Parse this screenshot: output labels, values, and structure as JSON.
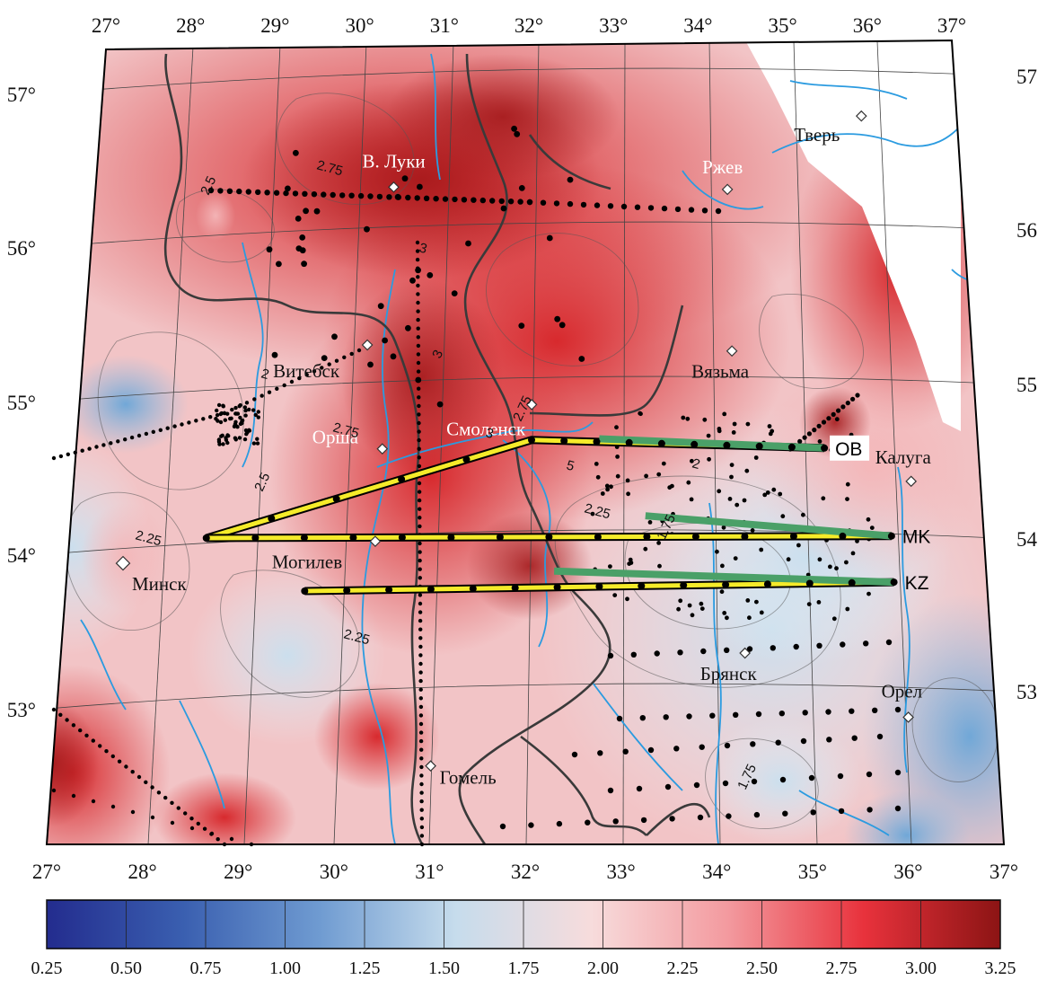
{
  "map": {
    "longitude_labels": [
      "27°",
      "28°",
      "29°",
      "30°",
      "31°",
      "32°",
      "33°",
      "34°",
      "35°",
      "36°",
      "37°"
    ],
    "latitude_labels": [
      "53°",
      "54°",
      "55°",
      "56°",
      "57°"
    ],
    "cities": [
      {
        "name": "В. Луки",
        "lon": 30.45,
        "lat": 56.2
      },
      {
        "name": "Ржев",
        "lon": 34.3,
        "lat": 56.26
      },
      {
        "name": "Тверь",
        "lon": 35.9,
        "lat": 56.86
      },
      {
        "name": "Витебск",
        "lon": 30.2,
        "lat": 55.18
      },
      {
        "name": "Вязьма",
        "lon": 34.3,
        "lat": 55.21
      },
      {
        "name": "Калуга",
        "lon": 36.25,
        "lat": 54.52
      },
      {
        "name": "Орша",
        "lon": 30.4,
        "lat": 54.5
      },
      {
        "name": "Смоленск",
        "lon": 32.05,
        "lat": 54.78
      },
      {
        "name": "Минск",
        "lon": 27.6,
        "lat": 53.9
      },
      {
        "name": "Могилев",
        "lon": 30.35,
        "lat": 53.9
      },
      {
        "name": "Брянск",
        "lon": 34.35,
        "lat": 53.25
      },
      {
        "name": "Орел",
        "lon": 36.08,
        "lat": 52.97
      },
      {
        "name": "Гомель",
        "lon": 31.0,
        "lat": 52.43
      }
    ],
    "contour_labels": [
      "2.5",
      "2.75",
      "3",
      "3",
      "2",
      "2.75",
      "2.5",
      "2.25",
      "3",
      "2.75",
      "5",
      "2.25",
      "1.75",
      "2",
      "2.25",
      "1.75"
    ],
    "profiles": [
      {
        "name": "OB",
        "start": [
          28.5,
          54.0
        ],
        "bend": [
          32.05,
          54.55
        ],
        "end": [
          35.3,
          54.65
        ],
        "anomaly_from_lon": 32.8
      },
      {
        "name": "MK",
        "start": [
          28.5,
          54.0
        ],
        "end": [
          36.0,
          54.14
        ],
        "anomaly_from_lon": 33.3
      },
      {
        "name": "KZ",
        "start": [
          29.6,
          53.6
        ],
        "end": [
          36.0,
          53.84
        ],
        "anomaly_from_lon": 32.3
      }
    ],
    "colors": {
      "profile_normal": "#f5eb2a",
      "profile_anomalous": "#4aa068",
      "river": "#2b9be0",
      "border": "#3a3a3a",
      "city_marker": "#ffffff"
    }
  },
  "colorbar": {
    "ticks": [
      "0.25",
      "0.50",
      "0.75",
      "1.00",
      "1.25",
      "1.50",
      "1.75",
      "2.00",
      "2.25",
      "2.50",
      "2.75",
      "3.00",
      "3.25"
    ],
    "stops": [
      "#232c8e",
      "#3a5fb0",
      "#6f9bd1",
      "#c6dcec",
      "#f7dcdc",
      "#f39a9f",
      "#e8323c",
      "#8c1414"
    ]
  }
}
